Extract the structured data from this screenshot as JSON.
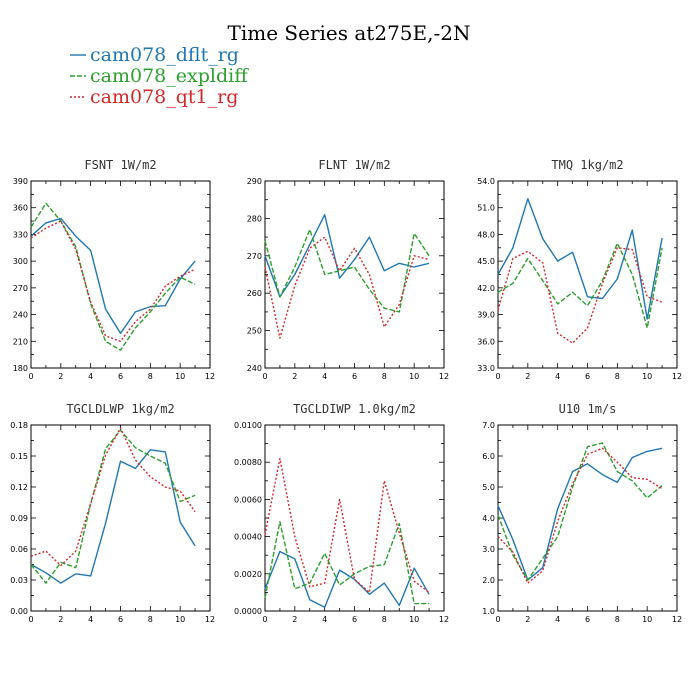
{
  "figure": {
    "title": "Time Series at275E,-2N"
  },
  "legend": [
    {
      "label": "cam078_dflt_rg",
      "color": "#1f77b4",
      "dash": "solid"
    },
    {
      "label": "cam078_expldiff",
      "color": "#2ca02c",
      "dash": "dashed"
    },
    {
      "label": "cam078_qt1_rg",
      "color": "#d62728",
      "dash": "dotted"
    }
  ],
  "chart_data": [
    {
      "type": "line",
      "title": "FSNT   1W/m2",
      "x": [
        0,
        1,
        2,
        3,
        4,
        5,
        6,
        7,
        8,
        9,
        10,
        11
      ],
      "xlim": [
        0,
        12
      ],
      "xticks": [
        "0",
        "2",
        "4",
        "6",
        "8",
        "10",
        "12"
      ],
      "ylim": [
        180,
        390
      ],
      "yticks": [
        "180",
        "210",
        "240",
        "270",
        "300",
        "330",
        "360",
        "390"
      ],
      "series": [
        {
          "name": "cam078_dflt_rg",
          "values": [
            328,
            343,
            348,
            328,
            312,
            246,
            219,
            243,
            249,
            250,
            280,
            300
          ]
        },
        {
          "name": "cam078_expldiff",
          "values": [
            338,
            365,
            345,
            316,
            252,
            210,
            200,
            225,
            243,
            264,
            282,
            274
          ]
        },
        {
          "name": "cam078_qt1_rg",
          "values": [
            326,
            337,
            345,
            313,
            254,
            216,
            210,
            232,
            246,
            272,
            283,
            291
          ]
        }
      ]
    },
    {
      "type": "line",
      "title": "FLNT   1W/m2",
      "x": [
        0,
        1,
        2,
        3,
        4,
        5,
        6,
        7,
        8,
        9,
        10,
        11
      ],
      "xlim": [
        0,
        12
      ],
      "xticks": [
        "0",
        "2",
        "4",
        "6",
        "8",
        "10",
        "12"
      ],
      "ylim": [
        240,
        290
      ],
      "yticks": [
        "240",
        "250",
        "260",
        "270",
        "280",
        "290"
      ],
      "series": [
        {
          "name": "cam078_dflt_rg",
          "values": [
            270,
            259,
            265,
            273,
            281,
            264,
            269,
            275,
            266,
            268,
            267,
            268
          ]
        },
        {
          "name": "cam078_expldiff",
          "values": [
            274,
            259,
            267,
            277,
            265,
            266,
            267,
            261,
            256,
            255,
            276,
            270
          ]
        },
        {
          "name": "cam078_qt1_rg",
          "values": [
            267,
            248,
            262,
            272,
            275,
            266,
            272,
            265,
            251,
            257,
            270,
            269
          ]
        }
      ]
    },
    {
      "type": "line",
      "title": "TMQ   1kg/m2",
      "x": [
        0,
        1,
        2,
        3,
        4,
        5,
        6,
        7,
        8,
        9,
        10,
        11
      ],
      "xlim": [
        0,
        12
      ],
      "xticks": [
        "0",
        "2",
        "4",
        "6",
        "8",
        "10",
        "12"
      ],
      "ylim": [
        33,
        54
      ],
      "yticks": [
        "33.0",
        "36.0",
        "39.0",
        "42.0",
        "45.0",
        "48.0",
        "51.0",
        "54.0"
      ],
      "series": [
        {
          "name": "cam078_dflt_rg",
          "values": [
            43.5,
            46.5,
            52.0,
            47.5,
            45.0,
            46.0,
            41.0,
            40.8,
            43.0,
            48.5,
            38.5,
            47.6
          ]
        },
        {
          "name": "cam078_expldiff",
          "values": [
            41.5,
            42.5,
            45.3,
            42.8,
            40.2,
            41.5,
            40.0,
            42.8,
            47.0,
            43.5,
            37.5,
            46.5
          ]
        },
        {
          "name": "cam078_qt1_rg",
          "values": [
            39.5,
            45.3,
            46.1,
            44.8,
            36.9,
            35.8,
            37.5,
            42.5,
            46.5,
            46.3,
            41.0,
            40.4
          ]
        }
      ]
    },
    {
      "type": "line",
      "title": "TGCLDLWP   1kg/m2",
      "x": [
        0,
        1,
        2,
        3,
        4,
        5,
        6,
        7,
        8,
        9,
        10,
        11
      ],
      "xlim": [
        0,
        12
      ],
      "xticks": [
        "0",
        "2",
        "4",
        "6",
        "8",
        "10",
        "12"
      ],
      "ylim": [
        0,
        0.18
      ],
      "yticks": [
        "0.00",
        "0.03",
        "0.06",
        "0.09",
        "0.12",
        "0.15",
        "0.18"
      ],
      "series": [
        {
          "name": "cam078_dflt_rg",
          "values": [
            0.045,
            0.037,
            0.027,
            0.036,
            0.034,
            0.085,
            0.145,
            0.138,
            0.156,
            0.154,
            0.086,
            0.063
          ]
        },
        {
          "name": "cam078_expldiff",
          "values": [
            0.045,
            0.027,
            0.047,
            0.042,
            0.104,
            0.157,
            0.175,
            0.158,
            0.15,
            0.143,
            0.106,
            0.112
          ]
        },
        {
          "name": "cam078_qt1_rg",
          "values": [
            0.053,
            0.058,
            0.044,
            0.058,
            0.104,
            0.151,
            0.177,
            0.146,
            0.13,
            0.12,
            0.116,
            0.096
          ]
        }
      ]
    },
    {
      "type": "line",
      "title": "TGCLDIWP   1.0kg/m2",
      "x": [
        0,
        1,
        2,
        3,
        4,
        5,
        6,
        7,
        8,
        9,
        10,
        11
      ],
      "xlim": [
        0,
        12
      ],
      "xticks": [
        "0",
        "2",
        "4",
        "6",
        "8",
        "10",
        "12"
      ],
      "ylim": [
        0,
        0.01
      ],
      "yticks": [
        "0.0000",
        "0.0020",
        "0.0040",
        "0.0060",
        "0.0080",
        "0.0100"
      ],
      "series": [
        {
          "name": "cam078_dflt_rg",
          "values": [
            0.0012,
            0.0032,
            0.0028,
            0.0006,
            0.0002,
            0.0022,
            0.0017,
            0.0009,
            0.0015,
            0.0003,
            0.0023,
            0.0009
          ]
        },
        {
          "name": "cam078_expldiff",
          "values": [
            0.0007,
            0.0048,
            0.0012,
            0.0015,
            0.0031,
            0.0014,
            0.002,
            0.0024,
            0.0025,
            0.0047,
            0.0004,
            0.0004
          ]
        },
        {
          "name": "cam078_qt1_rg",
          "values": [
            0.0041,
            0.0082,
            0.004,
            0.0013,
            0.0015,
            0.006,
            0.0017,
            0.001,
            0.007,
            0.0042,
            0.0016,
            0.001
          ]
        }
      ]
    },
    {
      "type": "line",
      "title": "U10   1m/s",
      "x": [
        0,
        1,
        2,
        3,
        4,
        5,
        6,
        7,
        8,
        9,
        10,
        11
      ],
      "xlim": [
        0,
        12
      ],
      "xticks": [
        "0",
        "2",
        "4",
        "6",
        "8",
        "10",
        "12"
      ],
      "ylim": [
        1,
        7
      ],
      "yticks": [
        "1.0",
        "2.0",
        "3.0",
        "4.0",
        "5.0",
        "6.0",
        "7.0"
      ],
      "series": [
        {
          "name": "cam078_dflt_rg",
          "values": [
            4.4,
            3.3,
            2.0,
            2.4,
            4.3,
            5.5,
            5.75,
            5.4,
            5.15,
            5.95,
            6.15,
            6.25
          ]
        },
        {
          "name": "cam078_expldiff",
          "values": [
            4.1,
            2.8,
            2.0,
            2.7,
            3.4,
            5.0,
            6.3,
            6.42,
            5.5,
            5.2,
            4.65,
            5.05
          ]
        },
        {
          "name": "cam078_qt1_rg",
          "values": [
            3.4,
            2.9,
            1.9,
            2.3,
            3.9,
            5.1,
            6.05,
            6.25,
            5.8,
            5.3,
            5.25,
            4.95
          ]
        }
      ]
    }
  ]
}
